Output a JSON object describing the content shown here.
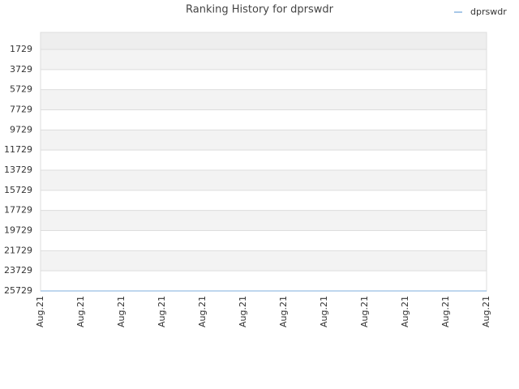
{
  "chart_data": {
    "type": "line",
    "title": "Ranking History for dprswdr",
    "categories": [
      "Aug.21",
      "Aug.21",
      "Aug.21",
      "Aug.21",
      "Aug.21",
      "Aug.21",
      "Aug.21",
      "Aug.21",
      "Aug.21",
      "Aug.21",
      "Aug.21",
      "Aug.21"
    ],
    "series": [
      {
        "name": "dprswdr",
        "color": "#a8c8e8",
        "values": [
          25729,
          25729,
          25729,
          25729,
          25729,
          25729,
          25729,
          25729,
          25729,
          25729,
          25729,
          25729
        ]
      }
    ],
    "ylim": [
      25729,
      38
    ],
    "yticks": [
      1729,
      3729,
      5729,
      7729,
      9729,
      11729,
      13729,
      15729,
      17729,
      19729,
      21729,
      23729,
      25729
    ],
    "y_inverted": true,
    "grid": true,
    "legend": "top-right"
  }
}
